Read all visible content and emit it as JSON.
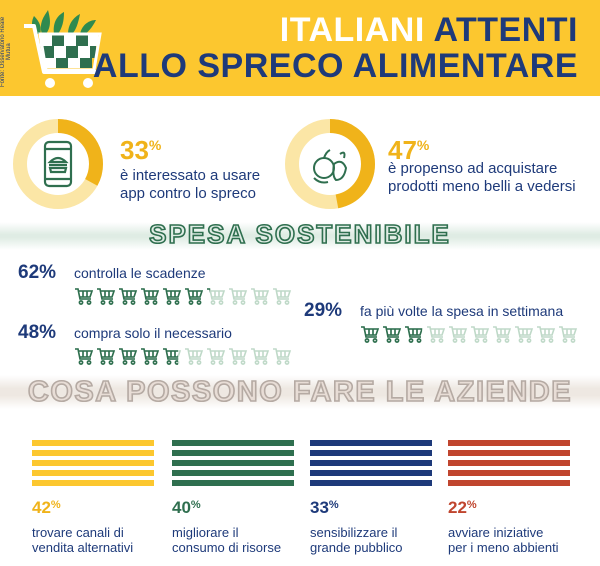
{
  "header": {
    "source": "Fonte: Osservatorio Reale Mutua",
    "title_line1_a": "ITALIANI",
    "title_line1_b": "ATTENTI",
    "title_line2": "ALLO SPRECO ALIMENTARE"
  },
  "donuts": [
    {
      "value": "33",
      "unit": "%",
      "fraction": 0.33,
      "text_l1": "è interessato a usare",
      "text_l2": "app contro lo spreco",
      "icon": "smartphone-food-icon"
    },
    {
      "value": "47",
      "unit": "%",
      "fraction": 0.47,
      "text_l1": "è propenso ad acquistare",
      "text_l2": "prodotti meno belli a vedersi",
      "icon": "fruit-vegetables-icon"
    }
  ],
  "spesa": {
    "title": "SPESA SOSTENIBILE",
    "stats": [
      {
        "pct": "62%",
        "text": "controlla le scadenze",
        "fraction": 0.62,
        "carts": 10
      },
      {
        "pct": "48%",
        "text": "compra solo il necessario",
        "fraction": 0.48,
        "carts": 10
      },
      {
        "pct": "29%",
        "text": "fa più volte la spesa in settimana",
        "fraction": 0.29,
        "carts": 10
      }
    ]
  },
  "aziende": {
    "title": "COSA POSSONO FARE LE AZIENDE",
    "items": [
      {
        "value": "42",
        "unit": "%",
        "text_l1": "trovare canali di",
        "text_l2": "vendita alternativi",
        "color": "#fcc72f"
      },
      {
        "value": "40",
        "unit": "%",
        "text_l1": "migliorare il",
        "text_l2": "consumo di risorse",
        "color": "#2f6f4f"
      },
      {
        "value": "33",
        "unit": "%",
        "text_l1": "sensibilizzare il",
        "text_l2": "grande pubblico",
        "color": "#1e3a7a"
      },
      {
        "value": "22",
        "unit": "%",
        "text_l1": "avviare iniziative",
        "text_l2": "per i meno abbienti",
        "color": "#c0452e"
      }
    ]
  },
  "colors": {
    "yellow": "#fcc72f",
    "blue": "#1e3a7a",
    "green": "#2f6f4f",
    "light_green": "#dfece4",
    "red": "#c0452e",
    "beige": "#eee8e2"
  }
}
